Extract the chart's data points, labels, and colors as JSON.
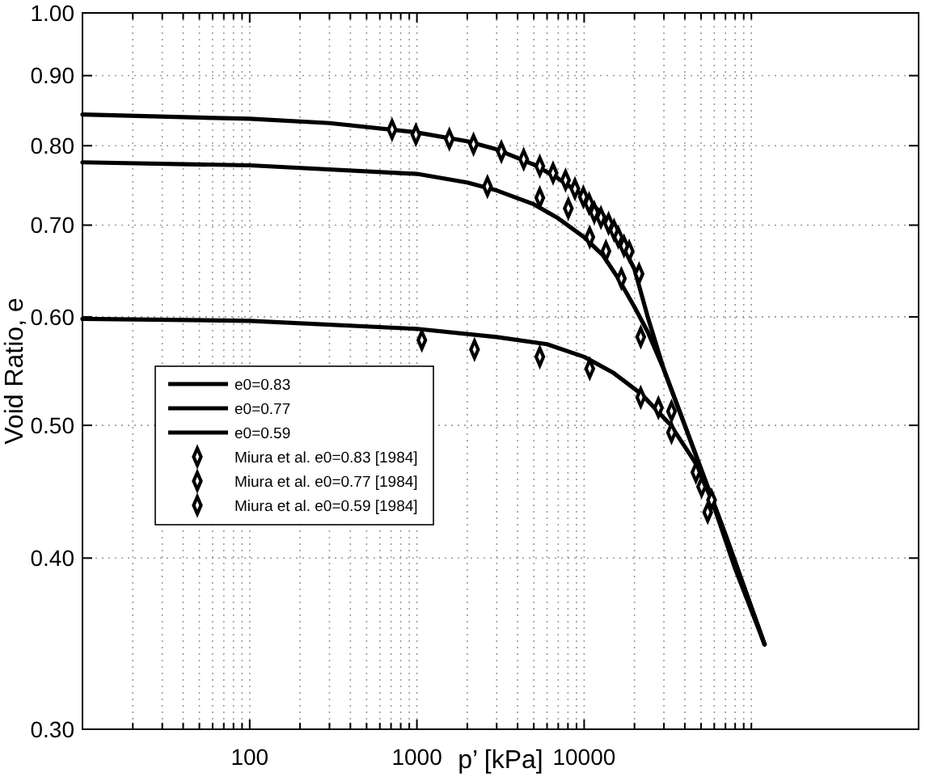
{
  "chart_data": {
    "type": "line",
    "xlabel": "p’ [kPa]",
    "ylabel": "Void Ratio, e",
    "log": "xy",
    "grid": true,
    "legend": "left",
    "xlim": [
      10,
      1000000
    ],
    "ylim": [
      0.3,
      1.0
    ],
    "xticks": [
      {
        "value": 10,
        "label": null
      },
      {
        "value": 20,
        "label": null
      },
      {
        "value": 30,
        "label": null
      },
      {
        "value": 40,
        "label": null
      },
      {
        "value": 50,
        "label": null
      },
      {
        "value": 60,
        "label": null
      },
      {
        "value": 70,
        "label": null
      },
      {
        "value": 80,
        "label": null
      },
      {
        "value": 90,
        "label": null
      },
      100,
      {
        "value": 200,
        "label": null
      },
      {
        "value": 300,
        "label": null
      },
      {
        "value": 400,
        "label": null
      },
      {
        "value": 500,
        "label": null
      },
      {
        "value": 600,
        "label": null
      },
      {
        "value": 700,
        "label": null
      },
      {
        "value": 800,
        "label": null
      },
      {
        "value": 900,
        "label": null
      },
      1000,
      {
        "value": 2000,
        "label": null
      },
      {
        "value": 3000,
        "label": null
      },
      {
        "value": 4000,
        "label": null
      },
      {
        "value": 5000,
        "label": null
      },
      {
        "value": 6000,
        "label": null
      },
      {
        "value": 7000,
        "label": null
      },
      {
        "value": 8000,
        "label": null
      },
      {
        "value": 9000,
        "label": null
      },
      10000,
      {
        "value": 20000,
        "label": null
      },
      {
        "value": 30000,
        "label": null
      },
      {
        "value": 40000,
        "label": null
      },
      {
        "value": 50000,
        "label": null
      },
      {
        "value": 60000,
        "label": null
      },
      {
        "value": 70000,
        "label": null
      },
      {
        "value": 80000,
        "label": null
      },
      {
        "value": 90000,
        "label": null
      },
      {
        "value": 100000,
        "label": null
      }
    ],
    "yticks": [
      {
        "value": 0.3,
        "label": "0.30"
      },
      {
        "value": 0.4,
        "label": "0.40"
      },
      {
        "value": 0.5,
        "label": "0.50"
      },
      {
        "value": 0.6,
        "label": "0.60"
      },
      {
        "value": 0.7,
        "label": "0.70"
      },
      {
        "value": 0.8,
        "label": "0.80"
      },
      {
        "value": 0.9,
        "label": "0.90"
      },
      {
        "value": 1.0,
        "label": "1.00"
      }
    ],
    "series": [
      {
        "name": "e0=0.83",
        "color": "#000000",
        "line_style": "solid",
        "x": [
          10,
          100,
          300,
          1000,
          2000,
          3000,
          5000,
          7000,
          10000,
          13000,
          16000,
          20000,
          24000,
          30000,
          40000,
          70000,
          120000
        ],
        "values": [
          0.843,
          0.837,
          0.831,
          0.818,
          0.806,
          0.795,
          0.775,
          0.757,
          0.735,
          0.712,
          0.686,
          0.65,
          0.6,
          0.549,
          0.5,
          0.416,
          0.346
        ]
      },
      {
        "name": "e0=0.77",
        "color": "#000000",
        "line_style": "solid",
        "x": [
          10,
          100,
          1000,
          2000,
          3000,
          5000,
          7000,
          10000,
          13000,
          16000,
          20000,
          24000,
          30000,
          40000,
          70000,
          120000
        ],
        "values": [
          0.778,
          0.774,
          0.763,
          0.752,
          0.742,
          0.725,
          0.708,
          0.686,
          0.665,
          0.64,
          0.61,
          0.585,
          0.549,
          0.5,
          0.416,
          0.346
        ]
      },
      {
        "name": "e0=0.59",
        "color": "#000000",
        "line_style": "solid",
        "x": [
          10,
          100,
          1000,
          3000,
          6000,
          10000,
          15000,
          22000,
          33000,
          46000,
          58000,
          80000,
          120000
        ],
        "values": [
          0.598,
          0.596,
          0.588,
          0.58,
          0.573,
          0.561,
          0.546,
          0.527,
          0.5,
          0.47,
          0.441,
          0.393,
          0.346
        ]
      },
      {
        "name": "Miura et al. e0=0.83 [1984]",
        "type": "scatter",
        "color": "#000000",
        "marker": "diamond",
        "x": [
          710,
          986,
          1563,
          2180,
          3200,
          4350,
          5430,
          6520,
          7740,
          8810,
          9890,
          10700,
          11500,
          12600,
          14000,
          15100,
          16000,
          17300,
          18600,
          21300
        ],
        "values": [
          0.822,
          0.815,
          0.809,
          0.802,
          0.792,
          0.782,
          0.773,
          0.764,
          0.755,
          0.744,
          0.734,
          0.726,
          0.715,
          0.709,
          0.702,
          0.694,
          0.686,
          0.676,
          0.67,
          0.645
        ]
      },
      {
        "name": "Miura et al. e0=0.77 [1984]",
        "type": "scatter",
        "color": "#000000",
        "marker": "diamond",
        "x": [
          2640,
          5430,
          8040,
          10800,
          13500,
          16700,
          21800,
          33300
        ],
        "values": [
          0.747,
          0.733,
          0.72,
          0.686,
          0.67,
          0.64,
          0.58,
          0.512
        ]
      },
      {
        "name": "Miura et al. e0=0.59 [1984]",
        "type": "scatter",
        "color": "#000000",
        "marker": "diamond",
        "x": [
          1070,
          2210,
          5430,
          10800,
          21800,
          27800,
          33300,
          46600,
          50400,
          54800,
          57800
        ],
        "values": [
          0.577,
          0.568,
          0.561,
          0.55,
          0.524,
          0.515,
          0.494,
          0.462,
          0.451,
          0.432,
          0.441
        ]
      }
    ]
  }
}
